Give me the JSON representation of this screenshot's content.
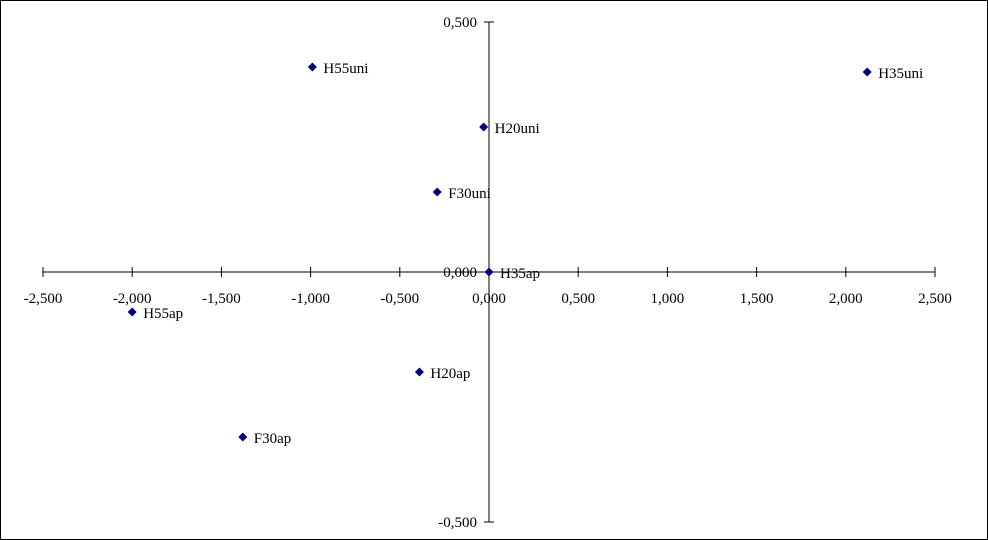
{
  "chart_data": {
    "type": "scatter",
    "title": "",
    "xlabel": "",
    "ylabel": "",
    "xlim": [
      -2.5,
      2.5
    ],
    "ylim": [
      -0.5,
      0.5
    ],
    "x_ticks": [
      "-2,500",
      "-2,000",
      "-1,500",
      "-1,000",
      "-0,500",
      "0,000",
      "0,500",
      "1,000",
      "1,500",
      "2,000",
      "2,500"
    ],
    "y_ticks": [
      "0,500",
      "0,000",
      "-0,500"
    ],
    "grid": false,
    "marker": "diamond",
    "marker_color": "#000080",
    "points": [
      {
        "label": "H55uni",
        "x": -0.99,
        "y": 0.41
      },
      {
        "label": "H35uni",
        "x": 2.12,
        "y": 0.4
      },
      {
        "label": "H20uni",
        "x": -0.03,
        "y": 0.29
      },
      {
        "label": "F30uni",
        "x": -0.29,
        "y": 0.16
      },
      {
        "label": "H35ap",
        "x": 0.0,
        "y": 0.0
      },
      {
        "label": "H55ap",
        "x": -2.0,
        "y": -0.08
      },
      {
        "label": "H20ap",
        "x": -0.39,
        "y": -0.2
      },
      {
        "label": "F30ap",
        "x": -1.38,
        "y": -0.33
      }
    ]
  }
}
